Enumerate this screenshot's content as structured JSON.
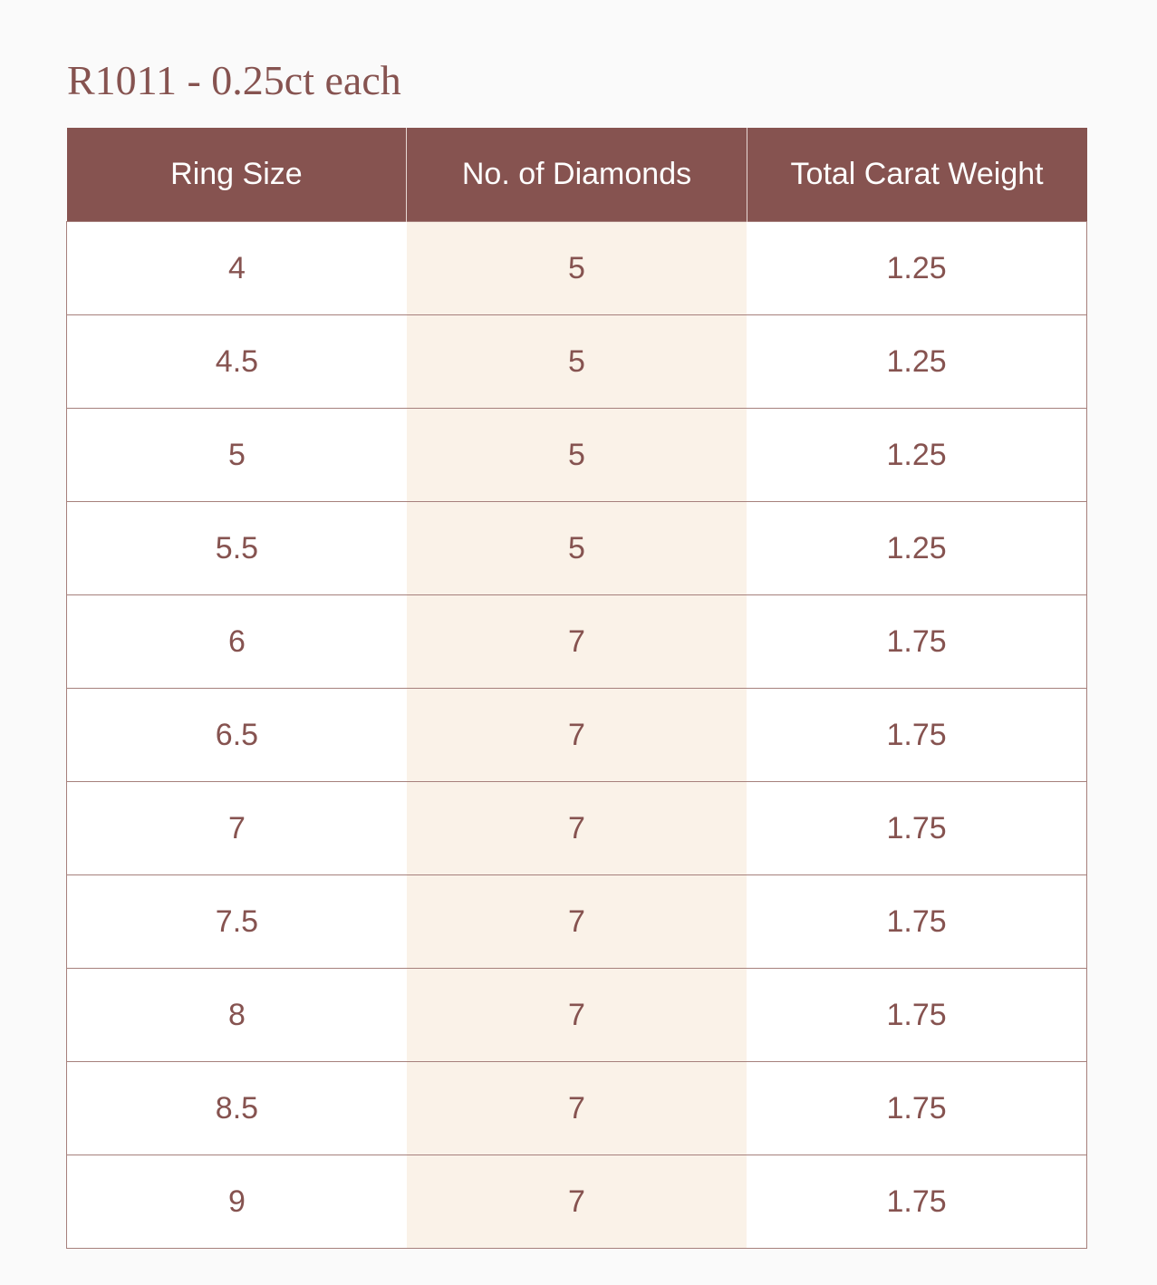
{
  "title": "R1011 - 0.25ct each",
  "table": {
    "header": [
      "Ring Size",
      "No. of Diamonds",
      "Total Carat Weight"
    ],
    "rows": [
      [
        "4",
        "5",
        "1.25"
      ],
      [
        "4.5",
        "5",
        "1.25"
      ],
      [
        "5",
        "5",
        "1.25"
      ],
      [
        "5.5",
        "5",
        "1.25"
      ],
      [
        "6",
        "7",
        "1.75"
      ],
      [
        "6.5",
        "7",
        "1.75"
      ],
      [
        "7",
        "7",
        "1.75"
      ],
      [
        "7.5",
        "7",
        "1.75"
      ],
      [
        "8",
        "7",
        "1.75"
      ],
      [
        "8.5",
        "7",
        "1.75"
      ],
      [
        "9",
        "7",
        "1.75"
      ]
    ]
  }
}
